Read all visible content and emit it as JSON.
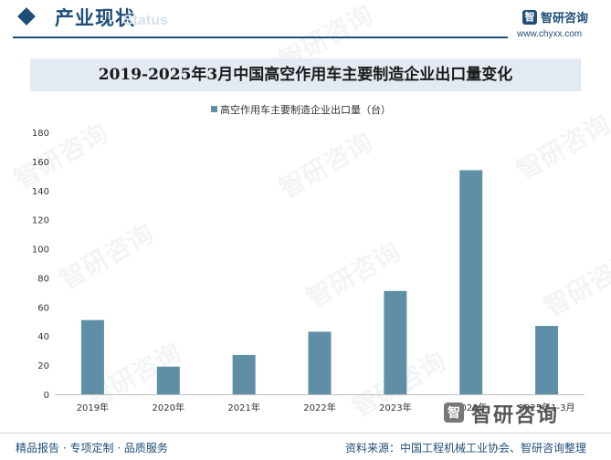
{
  "header": {
    "section_title": "产业现状",
    "section_subtitle": "Status",
    "logo_mark": "智",
    "logo_text": "智研咨询",
    "site_url": "www.chyxx.com"
  },
  "watermark_text": "智研咨询",
  "footer": {
    "left_text": "精品报告 · 专项定制 · 品质服务",
    "source_text": "资料来源：中国工程机械工业协会、智研咨询整理",
    "brand_mark": "智",
    "brand_text": "智研咨询"
  },
  "colors": {
    "bar": "#5f8fa6",
    "accent": "#1f4e79",
    "title_bg": "#e3eaf2"
  },
  "chart_data": {
    "type": "bar",
    "title": "2019-2025年3月中国高空作用车主要制造企业出口量变化",
    "categories": [
      "2019年",
      "2020年",
      "2021年",
      "2022年",
      "2023年",
      "2024年",
      "2025年1-3月"
    ],
    "series": [
      {
        "name": "高空作用车主要制造企业出口量（台）",
        "values": [
          51,
          19,
          27,
          43,
          71,
          154,
          47
        ]
      }
    ],
    "ylim": [
      0,
      180
    ],
    "yticks": [
      0,
      20,
      40,
      60,
      80,
      100,
      120,
      140,
      160,
      180
    ],
    "xlabel": "",
    "ylabel": "",
    "grid": false,
    "legend": "top-center"
  }
}
